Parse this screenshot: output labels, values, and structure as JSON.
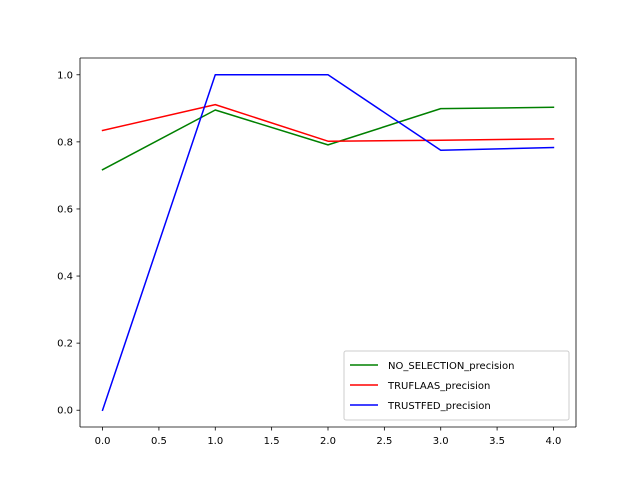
{
  "chart_data": {
    "type": "line",
    "title": "",
    "xlabel": "",
    "ylabel": "",
    "x": [
      0,
      1,
      2,
      3,
      4
    ],
    "xlim": [
      -0.2,
      4.2
    ],
    "ylim": [
      -0.05,
      1.05
    ],
    "xticks": [
      0.0,
      0.5,
      1.0,
      1.5,
      2.0,
      2.5,
      3.0,
      3.5,
      4.0
    ],
    "xtick_labels": [
      "0.0",
      "0.5",
      "1.0",
      "1.5",
      "2.0",
      "2.5",
      "3.0",
      "3.5",
      "4.0"
    ],
    "yticks": [
      0.0,
      0.2,
      0.4,
      0.6,
      0.8,
      1.0
    ],
    "ytick_labels": [
      "0.0",
      "0.2",
      "0.4",
      "0.6",
      "0.8",
      "1.0"
    ],
    "grid": false,
    "legend_position": "bottom-right",
    "series": [
      {
        "name": "NO_SELECTION_precision",
        "color": "#008000",
        "values": [
          0.717,
          0.895,
          0.791,
          0.899,
          0.903
        ]
      },
      {
        "name": "TRUFLAAS_precision",
        "color": "#ff0000",
        "values": [
          0.834,
          0.911,
          0.802,
          0.805,
          0.809
        ]
      },
      {
        "name": "TRUSTFED_precision",
        "color": "#0000ff",
        "values": [
          0.0,
          1.0,
          1.0,
          0.775,
          0.783
        ]
      }
    ]
  }
}
